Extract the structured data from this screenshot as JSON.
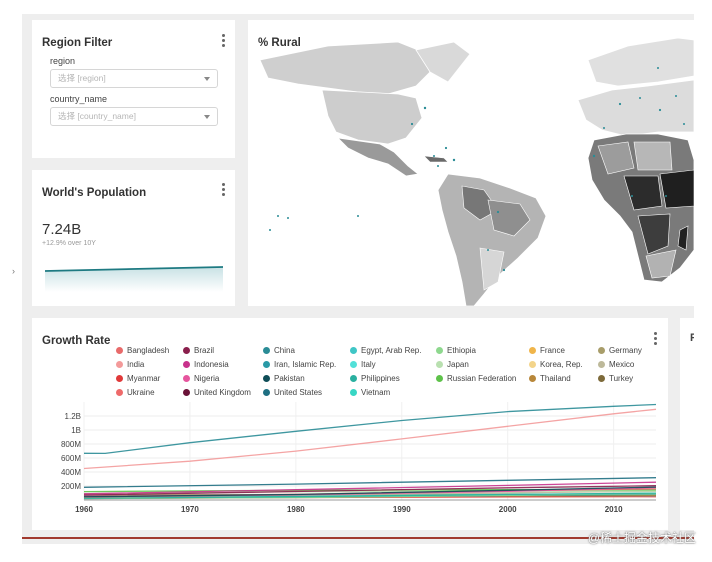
{
  "region_filter": {
    "title": "Region Filter",
    "fields": [
      {
        "label": "region",
        "placeholder": "选择 [region]"
      },
      {
        "label": "country_name",
        "placeholder": "选择 [country_name]"
      }
    ]
  },
  "population": {
    "title": "World's Population",
    "value": "7.24B",
    "change": "+12.9% over 10Y",
    "accent_color": "#1e7a82"
  },
  "rural_map": {
    "title": "% Rural"
  },
  "growth_rate": {
    "title": "Growth Rate",
    "clipped_title": "F"
  },
  "chart_data": {
    "type": "line",
    "title": "Growth Rate",
    "x_ticks": [
      "1960",
      "1970",
      "1980",
      "1990",
      "2000",
      "2010"
    ],
    "y_ticks": [
      "200M",
      "400M",
      "600M",
      "800M",
      "1B",
      "1.2B"
    ],
    "xlim": [
      1960,
      2014
    ],
    "ylim": [
      0,
      1400000000
    ],
    "legend_placement": "top",
    "series": [
      {
        "name": "Bangladesh",
        "color": "#e86a6a",
        "values": [
          [
            1960,
            48000000
          ],
          [
            1980,
            81000000
          ],
          [
            2000,
            131000000
          ],
          [
            2014,
            159000000
          ]
        ]
      },
      {
        "name": "Brazil",
        "color": "#8a1f4c",
        "values": [
          [
            1960,
            72000000
          ],
          [
            1980,
            121000000
          ],
          [
            2000,
            175000000
          ],
          [
            2014,
            204000000
          ]
        ]
      },
      {
        "name": "China",
        "color": "#2a8c96",
        "values": [
          [
            1960,
            667000000
          ],
          [
            1962,
            665000000
          ],
          [
            1970,
            818000000
          ],
          [
            1980,
            981000000
          ],
          [
            1990,
            1135000000
          ],
          [
            2000,
            1263000000
          ],
          [
            2010,
            1338000000
          ],
          [
            2014,
            1364000000
          ]
        ]
      },
      {
        "name": "Egypt, Arab Rep.",
        "color": "#3fc6c6",
        "values": [
          [
            1960,
            27000000
          ],
          [
            1980,
            44000000
          ],
          [
            2000,
            68000000
          ],
          [
            2014,
            89000000
          ]
        ]
      },
      {
        "name": "Ethiopia",
        "color": "#8ed88e",
        "values": [
          [
            1960,
            22000000
          ],
          [
            1980,
            35000000
          ],
          [
            2000,
            66000000
          ],
          [
            2014,
            97000000
          ]
        ]
      },
      {
        "name": "France",
        "color": "#f0b54a",
        "values": [
          [
            1960,
            46000000
          ],
          [
            1980,
            54000000
          ],
          [
            2000,
            61000000
          ],
          [
            2014,
            66000000
          ]
        ]
      },
      {
        "name": "Germany",
        "color": "#a89d6a",
        "values": [
          [
            1960,
            73000000
          ],
          [
            1980,
            78000000
          ],
          [
            2000,
            82000000
          ],
          [
            2014,
            81000000
          ]
        ]
      },
      {
        "name": "India",
        "color": "#f39a9a",
        "values": [
          [
            1960,
            450000000
          ],
          [
            1970,
            555000000
          ],
          [
            1980,
            699000000
          ],
          [
            1990,
            873000000
          ],
          [
            2000,
            1053000000
          ],
          [
            2010,
            1231000000
          ],
          [
            2014,
            1295000000
          ]
        ]
      },
      {
        "name": "Indonesia",
        "color": "#c8328c",
        "values": [
          [
            1960,
            88000000
          ],
          [
            1980,
            147000000
          ],
          [
            2000,
            208000000
          ],
          [
            2014,
            255000000
          ]
        ]
      },
      {
        "name": "Iran, Islamic Rep.",
        "color": "#2a9aa6",
        "values": [
          [
            1960,
            22000000
          ],
          [
            1980,
            39000000
          ],
          [
            2000,
            66000000
          ],
          [
            2014,
            78000000
          ]
        ]
      },
      {
        "name": "Italy",
        "color": "#52e0d8",
        "values": [
          [
            1960,
            50000000
          ],
          [
            1980,
            56000000
          ],
          [
            2000,
            57000000
          ],
          [
            2014,
            61000000
          ]
        ]
      },
      {
        "name": "Japan",
        "color": "#b9e0b0",
        "values": [
          [
            1960,
            93000000
          ],
          [
            1980,
            117000000
          ],
          [
            2000,
            127000000
          ],
          [
            2014,
            127000000
          ]
        ]
      },
      {
        "name": "Korea, Rep.",
        "color": "#f3d48a",
        "values": [
          [
            1960,
            25000000
          ],
          [
            1980,
            38000000
          ],
          [
            2000,
            47000000
          ],
          [
            2014,
            50000000
          ]
        ]
      },
      {
        "name": "Mexico",
        "color": "#bdb99a",
        "values": [
          [
            1960,
            38000000
          ],
          [
            1980,
            70000000
          ],
          [
            2000,
            103000000
          ],
          [
            2014,
            125000000
          ]
        ]
      },
      {
        "name": "Myanmar",
        "color": "#e03a3a",
        "values": [
          [
            1960,
            21000000
          ],
          [
            1980,
            34000000
          ],
          [
            2000,
            46000000
          ],
          [
            2014,
            53000000
          ]
        ]
      },
      {
        "name": "Nigeria",
        "color": "#e6559e",
        "values": [
          [
            1960,
            45000000
          ],
          [
            1980,
            74000000
          ],
          [
            2000,
            123000000
          ],
          [
            2014,
            177000000
          ]
        ]
      },
      {
        "name": "Pakistan",
        "color": "#0f4d57",
        "values": [
          [
            1960,
            45000000
          ],
          [
            1980,
            78000000
          ],
          [
            2000,
            138000000
          ],
          [
            2014,
            185000000
          ]
        ]
      },
      {
        "name": "Philippines",
        "color": "#2ab0a0",
        "values": [
          [
            1960,
            26000000
          ],
          [
            1980,
            47000000
          ],
          [
            2000,
            78000000
          ],
          [
            2014,
            99000000
          ]
        ]
      },
      {
        "name": "Russian Federation",
        "color": "#5ec24a",
        "values": [
          [
            1960,
            120000000
          ],
          [
            1980,
            139000000
          ],
          [
            2000,
            147000000
          ],
          [
            2014,
            144000000
          ]
        ]
      },
      {
        "name": "Thailand",
        "color": "#b8873a",
        "values": [
          [
            1960,
            27000000
          ],
          [
            1980,
            47000000
          ],
          [
            2000,
            63000000
          ],
          [
            2014,
            68000000
          ]
        ]
      },
      {
        "name": "Turkey",
        "color": "#7d6a3a",
        "values": [
          [
            1960,
            28000000
          ],
          [
            1980,
            44000000
          ],
          [
            2000,
            64000000
          ],
          [
            2014,
            77000000
          ]
        ]
      },
      {
        "name": "Ukraine",
        "color": "#ee6a6a",
        "values": [
          [
            1960,
            43000000
          ],
          [
            1990,
            52000000
          ],
          [
            2000,
            49000000
          ],
          [
            2014,
            45000000
          ]
        ]
      },
      {
        "name": "United Kingdom",
        "color": "#6a1238",
        "values": [
          [
            1960,
            52000000
          ],
          [
            1980,
            56000000
          ],
          [
            2000,
            59000000
          ],
          [
            2014,
            65000000
          ]
        ]
      },
      {
        "name": "United States",
        "color": "#1e6f82",
        "values": [
          [
            1960,
            181000000
          ],
          [
            1980,
            227000000
          ],
          [
            2000,
            282000000
          ],
          [
            2014,
            319000000
          ]
        ]
      },
      {
        "name": "Vietnam",
        "color": "#38d6c4",
        "values": [
          [
            1960,
            32000000
          ],
          [
            1980,
            54000000
          ],
          [
            2000,
            80000000
          ],
          [
            2014,
            91000000
          ]
        ]
      }
    ]
  },
  "watermark": "@稀土掘金技术社区"
}
